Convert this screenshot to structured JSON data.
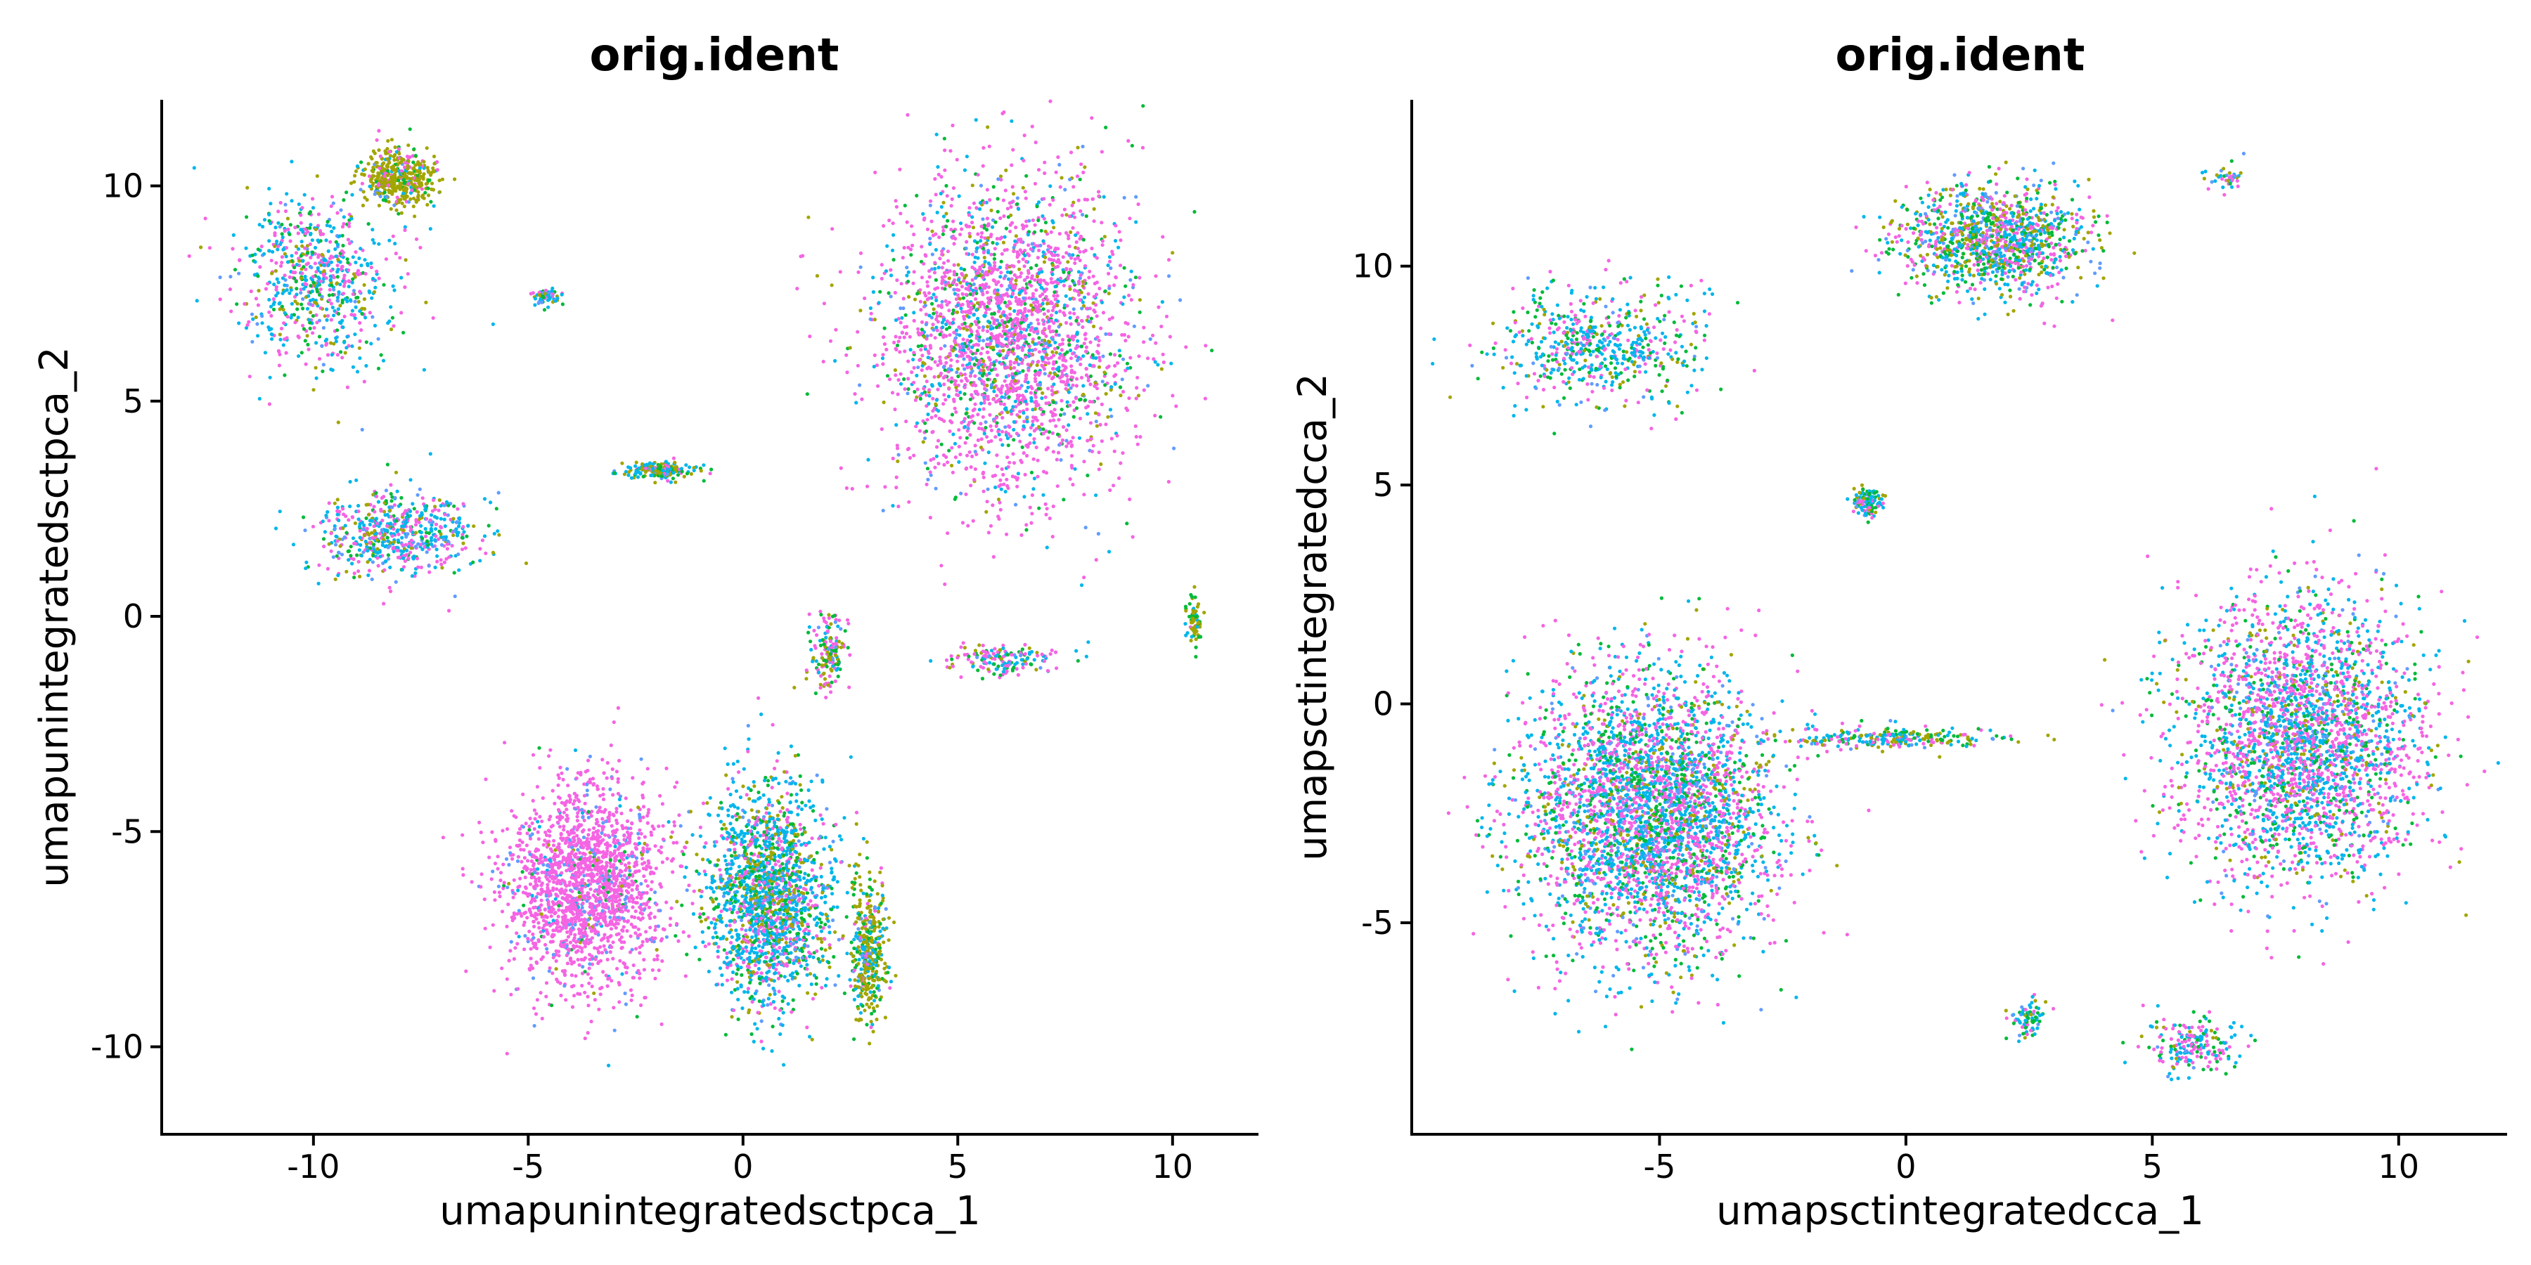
{
  "chart_data": [
    {
      "type": "scatter",
      "title": "orig.ident",
      "xlabel": "umapunintegratedsctpca_1",
      "ylabel": "umapunintegratedsctpca_2",
      "xlim": [
        -13.5,
        12
      ],
      "ylim": [
        -12,
        12
      ],
      "xticks": [
        -10,
        -5,
        0,
        5,
        10
      ],
      "yticks": [
        -10,
        -5,
        0,
        5,
        10
      ],
      "xtick_labels": [
        "-10",
        "-5",
        "0",
        "5",
        "10"
      ],
      "ytick_labels": [
        "-10",
        "-5",
        "0",
        "5",
        "10"
      ],
      "legend": "none",
      "grid": false,
      "series_colors": [
        "#f564e3",
        "#00b6eb",
        "#00ba38",
        "#a3a500",
        "#619cff",
        "#f8766d"
      ],
      "clusters": [
        {
          "center": [
            -10.0,
            7.8
          ],
          "spread": [
            1.6,
            1.8
          ],
          "n": 700,
          "mix": [
            0.3,
            0.35,
            0.15,
            0.1,
            0.1,
            0.0
          ]
        },
        {
          "center": [
            -8.0,
            10.2
          ],
          "spread": [
            0.8,
            0.6
          ],
          "n": 450,
          "mix": [
            0.1,
            0.05,
            0.1,
            0.7,
            0.05,
            0.0
          ]
        },
        {
          "center": [
            -8.0,
            1.9
          ],
          "spread": [
            1.7,
            0.9
          ],
          "n": 600,
          "mix": [
            0.3,
            0.4,
            0.1,
            0.1,
            0.1,
            0.0
          ]
        },
        {
          "center": [
            -4.6,
            7.4
          ],
          "spread": [
            0.3,
            0.2
          ],
          "n": 60,
          "mix": [
            0.2,
            0.3,
            0.2,
            0.2,
            0.1,
            0.0
          ]
        },
        {
          "center": [
            -2.0,
            3.4
          ],
          "spread": [
            0.8,
            0.2
          ],
          "n": 180,
          "mix": [
            0.1,
            0.3,
            0.2,
            0.35,
            0.05,
            0.0
          ]
        },
        {
          "center": [
            6.2,
            6.5
          ],
          "spread": [
            2.6,
            3.2
          ],
          "n": 2600,
          "mix": [
            0.62,
            0.12,
            0.1,
            0.08,
            0.08,
            0.0
          ]
        },
        {
          "center": [
            -3.7,
            -6.2
          ],
          "spread": [
            1.7,
            2.1
          ],
          "n": 1900,
          "mix": [
            0.85,
            0.02,
            0.02,
            0.01,
            0.1,
            0.0
          ]
        },
        {
          "center": [
            0.6,
            -6.5
          ],
          "spread": [
            1.3,
            2.3
          ],
          "n": 1800,
          "mix": [
            0.2,
            0.45,
            0.15,
            0.15,
            0.05,
            0.0
          ]
        },
        {
          "center": [
            2.9,
            -7.8
          ],
          "spread": [
            0.4,
            1.5
          ],
          "n": 400,
          "mix": [
            0.05,
            0.2,
            0.2,
            0.5,
            0.05,
            0.0
          ]
        },
        {
          "center": [
            2.0,
            -0.8
          ],
          "spread": [
            0.4,
            0.8
          ],
          "n": 160,
          "mix": [
            0.3,
            0.2,
            0.2,
            0.25,
            0.05,
            0.0
          ]
        },
        {
          "center": [
            6.0,
            -1.0
          ],
          "spread": [
            1.2,
            0.3
          ],
          "n": 160,
          "mix": [
            0.4,
            0.25,
            0.2,
            0.1,
            0.05,
            0.0
          ]
        },
        {
          "center": [
            10.5,
            -0.1
          ],
          "spread": [
            0.15,
            0.5
          ],
          "n": 70,
          "mix": [
            0.05,
            0.1,
            0.3,
            0.55,
            0.0,
            0.0
          ]
        }
      ]
    },
    {
      "type": "scatter",
      "title": "orig.ident",
      "xlabel": "umapsctintegratedcca_1",
      "ylabel": "umapsctintegratedcca_2",
      "xlim": [
        -10,
        12.2
      ],
      "ylim": [
        -9.8,
        13.8
      ],
      "xticks": [
        -5,
        0,
        5,
        10
      ],
      "yticks": [
        -5,
        0,
        5,
        10
      ],
      "xtick_labels": [
        "-5",
        "0",
        "5",
        "10"
      ],
      "ytick_labels": [
        "-5",
        "0",
        "5",
        "10"
      ],
      "legend": "none",
      "grid": false,
      "series_colors": [
        "#f564e3",
        "#00b6eb",
        "#00ba38",
        "#a3a500",
        "#619cff",
        "#f8766d"
      ],
      "clusters": [
        {
          "center": [
            1.8,
            10.6
          ],
          "spread": [
            1.7,
            1.1
          ],
          "n": 1200,
          "mix": [
            0.25,
            0.25,
            0.2,
            0.2,
            0.1,
            0.0
          ]
        },
        {
          "center": [
            -6.2,
            8.2
          ],
          "spread": [
            1.9,
            1.2
          ],
          "n": 600,
          "mix": [
            0.25,
            0.4,
            0.2,
            0.1,
            0.05,
            0.0
          ]
        },
        {
          "center": [
            6.5,
            12.0
          ],
          "spread": [
            0.4,
            0.3
          ],
          "n": 40,
          "mix": [
            0.3,
            0.4,
            0.1,
            0.1,
            0.1,
            0.0
          ]
        },
        {
          "center": [
            -0.8,
            4.6
          ],
          "spread": [
            0.3,
            0.3
          ],
          "n": 120,
          "mix": [
            0.2,
            0.4,
            0.2,
            0.15,
            0.05,
            0.0
          ]
        },
        {
          "center": [
            -5.2,
            -2.5
          ],
          "spread": [
            2.3,
            2.9
          ],
          "n": 3600,
          "mix": [
            0.35,
            0.35,
            0.15,
            0.08,
            0.07,
            0.0
          ]
        },
        {
          "center": [
            -0.3,
            -0.8
          ],
          "spread": [
            1.9,
            0.2
          ],
          "n": 260,
          "mix": [
            0.2,
            0.3,
            0.2,
            0.25,
            0.05,
            0.0
          ]
        },
        {
          "center": [
            8.0,
            -0.8
          ],
          "spread": [
            2.2,
            2.9
          ],
          "n": 2800,
          "mix": [
            0.42,
            0.32,
            0.12,
            0.08,
            0.06,
            0.0
          ]
        },
        {
          "center": [
            2.5,
            -7.2
          ],
          "spread": [
            0.3,
            0.4
          ],
          "n": 80,
          "mix": [
            0.2,
            0.45,
            0.2,
            0.1,
            0.05,
            0.0
          ]
        },
        {
          "center": [
            5.8,
            -7.8
          ],
          "spread": [
            0.8,
            0.6
          ],
          "n": 200,
          "mix": [
            0.4,
            0.3,
            0.2,
            0.05,
            0.05,
            0.0
          ]
        }
      ]
    }
  ]
}
